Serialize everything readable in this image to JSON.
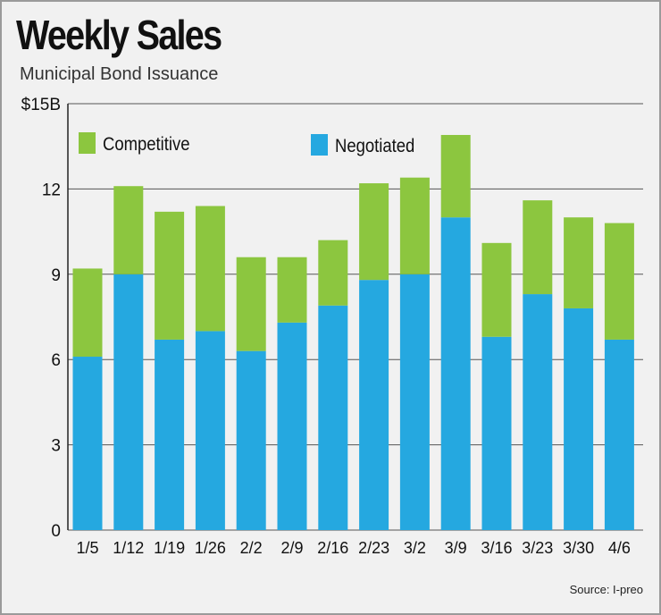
{
  "chart_data": {
    "type": "bar",
    "stacked": true,
    "title": "Weekly Sales",
    "subtitle": "Municipal Bond Issuance",
    "source": "Source: I-preo",
    "categories": [
      "1/5",
      "1/12",
      "1/19",
      "1/26",
      "2/2",
      "2/9",
      "2/16",
      "2/23",
      "3/2",
      "3/9",
      "3/16",
      "3/23",
      "3/30",
      "4/6"
    ],
    "series": [
      {
        "name": "Negotiated",
        "color": "#25a8e0",
        "values": [
          6.1,
          9.0,
          6.7,
          7.0,
          6.3,
          7.3,
          7.9,
          8.8,
          9.0,
          11.0,
          6.8,
          8.3,
          7.8,
          6.7
        ]
      },
      {
        "name": "Competitive",
        "color": "#8cc63f",
        "values": [
          3.1,
          3.1,
          4.5,
          4.4,
          3.3,
          2.3,
          2.3,
          3.4,
          3.4,
          2.9,
          3.3,
          3.3,
          3.2,
          4.1
        ]
      }
    ],
    "yticks": [
      "0",
      "3",
      "6",
      "9",
      "12",
      "$15B"
    ],
    "ytick_values": [
      0,
      3,
      6,
      9,
      12,
      15
    ],
    "ylim": [
      0,
      15
    ],
    "xlabel": "",
    "ylabel": "",
    "grid": true,
    "legend": {
      "placement": "top-left",
      "order": [
        "Competitive",
        "Negotiated"
      ]
    }
  }
}
